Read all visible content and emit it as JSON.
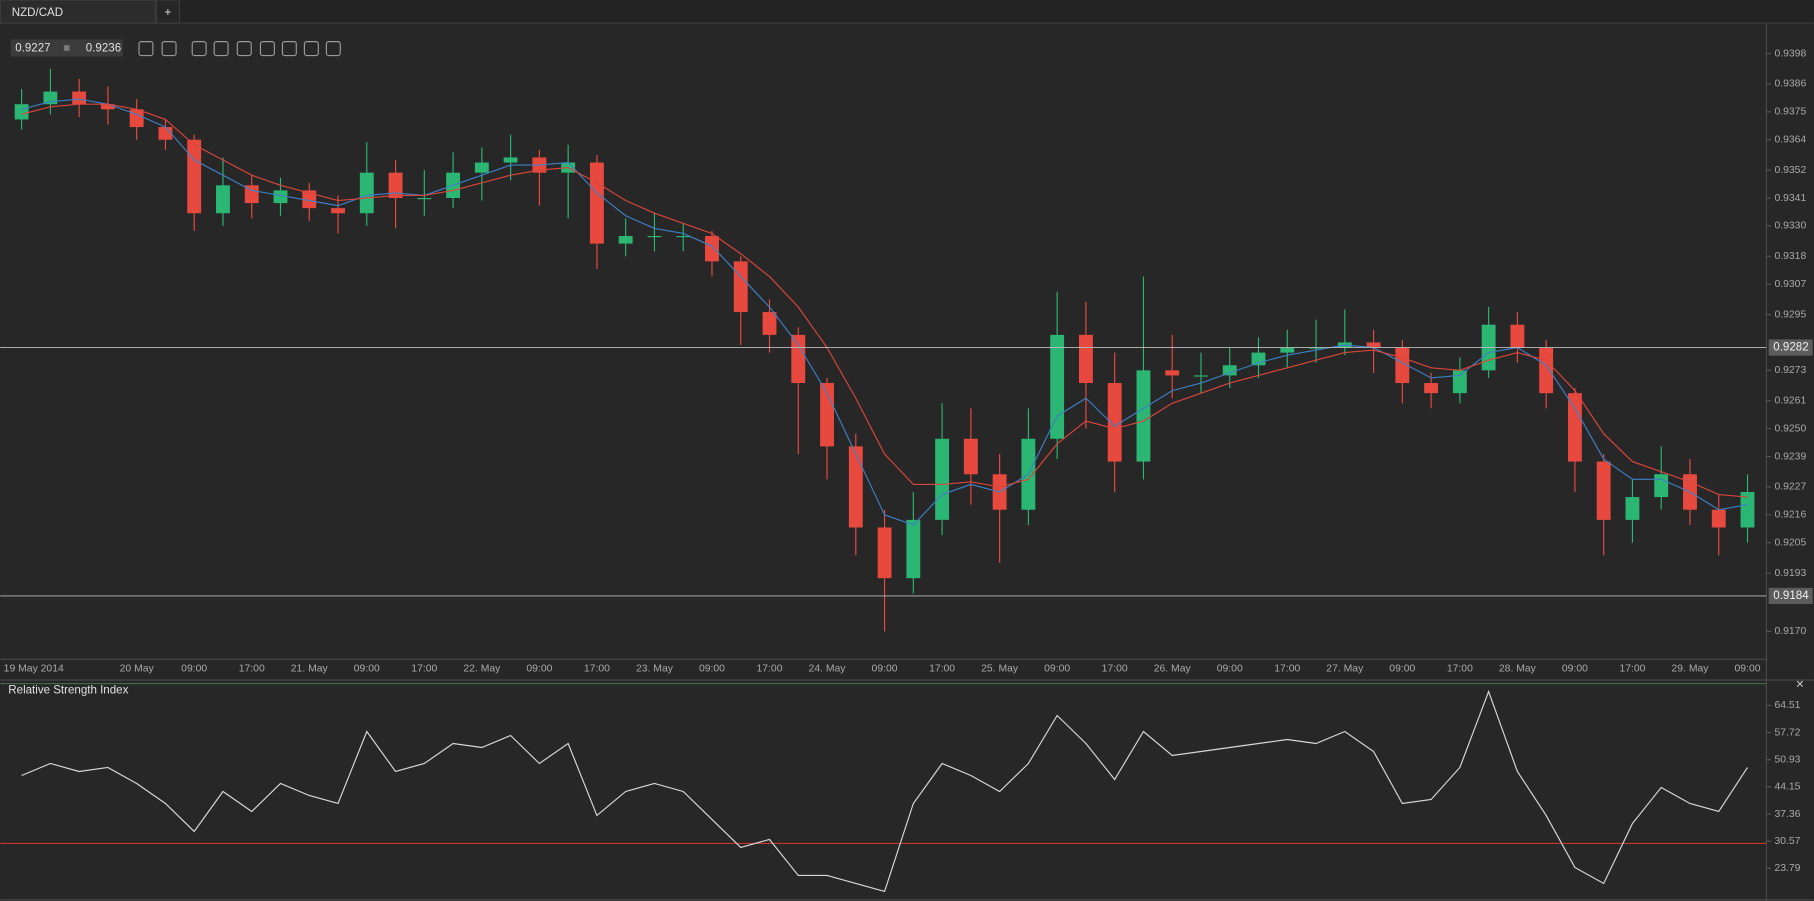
{
  "tab": {
    "symbol": "NZD/CAD",
    "add": "+"
  },
  "quote": {
    "bid": "0.9227",
    "ask": "0.9236"
  },
  "chart_data": [
    {
      "type": "candlestick",
      "categories": [
        "19 May 2014",
        null,
        null,
        null,
        "20 May",
        null,
        "09:00",
        null,
        "17:00",
        null,
        "21. May",
        null,
        "09:00",
        null,
        "17:00",
        null,
        "22. May",
        null,
        "09:00",
        null,
        "17:00",
        null,
        "23. May",
        null,
        "09:00",
        null,
        "17:00",
        null,
        "24. May",
        null,
        "09:00",
        null,
        "17:00",
        null,
        "25. May",
        null,
        "09:00",
        null,
        "17:00",
        null,
        "26. May",
        null,
        "09:00",
        null,
        "17:00",
        null,
        "27. May",
        null,
        "09:00",
        null,
        "17:00",
        null,
        "28. May",
        null,
        "09:00",
        null,
        "17:00",
        null,
        "29. May",
        null,
        "09:00"
      ],
      "open": [
        0.9372,
        0.9378,
        0.9383,
        0.9378,
        0.9376,
        0.9369,
        0.9364,
        0.9335,
        0.9346,
        0.9339,
        0.9344,
        0.9337,
        0.9335,
        0.9351,
        0.9341,
        0.9341,
        0.9351,
        0.9355,
        0.9357,
        0.9351,
        0.9355,
        0.9323,
        0.9326,
        0.9326,
        0.9326,
        0.9316,
        0.9296,
        0.9287,
        0.9268,
        0.9243,
        0.9211,
        0.9191,
        0.9214,
        0.9246,
        0.9232,
        0.9218,
        0.9246,
        0.9287,
        0.9268,
        0.9237,
        0.9273,
        0.9271,
        0.9271,
        0.9275,
        0.928,
        0.9282,
        0.9282,
        0.9284,
        0.9282,
        0.9268,
        0.9264,
        0.9273,
        0.9291,
        0.9282,
        0.9264,
        0.9237,
        0.9214,
        0.9223,
        0.9232,
        0.9218,
        0.9211
      ],
      "high": [
        0.9384,
        0.9392,
        0.9388,
        0.9385,
        0.938,
        0.9372,
        0.9366,
        0.9357,
        0.935,
        0.9349,
        0.9347,
        0.9342,
        0.9363,
        0.9356,
        0.9352,
        0.9359,
        0.9361,
        0.9366,
        0.936,
        0.9362,
        0.9358,
        0.9333,
        0.9335,
        0.9331,
        0.9328,
        0.9318,
        0.9301,
        0.929,
        0.927,
        0.9248,
        0.9218,
        0.9225,
        0.926,
        0.9258,
        0.924,
        0.9258,
        0.9304,
        0.93,
        0.928,
        0.931,
        0.9287,
        0.928,
        0.9282,
        0.9286,
        0.9289,
        0.9293,
        0.9297,
        0.9289,
        0.9285,
        0.9272,
        0.9278,
        0.9298,
        0.9296,
        0.9285,
        0.9266,
        0.924,
        0.923,
        0.9243,
        0.9238,
        0.9224,
        0.9232
      ],
      "low": [
        0.9368,
        0.9374,
        0.9373,
        0.937,
        0.9364,
        0.936,
        0.9328,
        0.933,
        0.9333,
        0.9334,
        0.9332,
        0.9327,
        0.933,
        0.9329,
        0.9334,
        0.9337,
        0.934,
        0.9348,
        0.9338,
        0.9333,
        0.9313,
        0.9318,
        0.932,
        0.932,
        0.931,
        0.9283,
        0.928,
        0.924,
        0.923,
        0.92,
        0.917,
        0.9185,
        0.9208,
        0.922,
        0.9197,
        0.9212,
        0.9238,
        0.925,
        0.9225,
        0.923,
        0.9262,
        0.9264,
        0.9266,
        0.927,
        0.9274,
        0.9276,
        0.9279,
        0.9272,
        0.926,
        0.9258,
        0.926,
        0.927,
        0.9276,
        0.9258,
        0.9225,
        0.92,
        0.9205,
        0.9218,
        0.9212,
        0.92,
        0.9205
      ],
      "close": [
        0.9378,
        0.9383,
        0.9378,
        0.9376,
        0.9369,
        0.9364,
        0.9335,
        0.9346,
        0.9339,
        0.9344,
        0.9337,
        0.9335,
        0.9351,
        0.9341,
        0.9341,
        0.9351,
        0.9355,
        0.9357,
        0.9351,
        0.9355,
        0.9323,
        0.9326,
        0.9326,
        0.9326,
        0.9316,
        0.9296,
        0.9287,
        0.9268,
        0.9243,
        0.9211,
        0.9191,
        0.9214,
        0.9246,
        0.9232,
        0.9218,
        0.9246,
        0.9287,
        0.9268,
        0.9237,
        0.9273,
        0.9271,
        0.9271,
        0.9275,
        0.928,
        0.9282,
        0.9282,
        0.9284,
        0.9282,
        0.9268,
        0.9264,
        0.9273,
        0.9291,
        0.9282,
        0.9264,
        0.9237,
        0.9214,
        0.9223,
        0.9232,
        0.9218,
        0.9211,
        0.9225
      ],
      "up_color": "#2bb673",
      "down_color": "#e8493f",
      "overlays": [
        {
          "color": "#3d7fc4",
          "values": [
            0.9376,
            0.9379,
            0.938,
            0.9378,
            0.9374,
            0.9369,
            0.9356,
            0.935,
            0.9344,
            0.9342,
            0.934,
            0.9338,
            0.9342,
            0.9343,
            0.9342,
            0.9346,
            0.935,
            0.9354,
            0.9354,
            0.9355,
            0.9343,
            0.9334,
            0.9329,
            0.9327,
            0.9322,
            0.931,
            0.9298,
            0.9283,
            0.9264,
            0.924,
            0.9216,
            0.9212,
            0.9224,
            0.9228,
            0.9225,
            0.9232,
            0.9255,
            0.9262,
            0.9251,
            0.9258,
            0.9265,
            0.9268,
            0.9272,
            0.9276,
            0.9279,
            0.9281,
            0.9283,
            0.9282,
            0.9276,
            0.927,
            0.9271,
            0.928,
            0.9282,
            0.9275,
            0.9258,
            0.9238,
            0.923,
            0.923,
            0.9225,
            0.9218,
            0.922
          ]
        },
        {
          "color": "#d8453c",
          "values": [
            0.9374,
            0.9377,
            0.9378,
            0.9378,
            0.9376,
            0.9372,
            0.9362,
            0.9356,
            0.935,
            0.9346,
            0.9343,
            0.934,
            0.9341,
            0.9342,
            0.9342,
            0.9344,
            0.9347,
            0.935,
            0.9352,
            0.9353,
            0.9347,
            0.934,
            0.9335,
            0.9331,
            0.9327,
            0.9319,
            0.931,
            0.9298,
            0.9282,
            0.9262,
            0.924,
            0.9228,
            0.9228,
            0.9229,
            0.9227,
            0.923,
            0.9244,
            0.9253,
            0.925,
            0.9253,
            0.926,
            0.9264,
            0.9268,
            0.9271,
            0.9274,
            0.9277,
            0.928,
            0.9281,
            0.9278,
            0.9274,
            0.9273,
            0.9277,
            0.928,
            0.9277,
            0.9265,
            0.9248,
            0.9237,
            0.9233,
            0.9229,
            0.9224,
            0.9223
          ]
        }
      ],
      "hlines": [
        0.9282,
        0.9184
      ],
      "ylim": [
        0.9159,
        0.941
      ],
      "yticks": [
        0.9398,
        0.9386,
        0.9375,
        0.9364,
        0.9352,
        0.9341,
        {
          "value": 0.933,
          "label": "0.9330"
        },
        0.9318,
        0.9307,
        0.9295,
        0.9273,
        0.9261,
        {
          "value": 0.925,
          "label": "0.9250"
        },
        0.9239,
        0.9227,
        0.9216,
        0.9205,
        0.9193,
        {
          "value": 0.917,
          "label": "0.9170"
        }
      ]
    },
    {
      "type": "line",
      "title": "Relative Strength Index",
      "close": "×",
      "color": "#d8d8d8",
      "values": [
        47,
        50,
        48,
        49,
        45,
        40,
        33,
        43,
        38,
        45,
        42,
        40,
        58,
        48,
        50,
        55,
        54,
        57,
        50,
        55,
        37,
        43,
        45,
        43,
        36,
        29,
        31,
        22,
        22,
        20,
        18,
        40,
        50,
        47,
        43,
        50,
        62,
        55,
        46,
        58,
        52,
        53,
        54,
        55,
        56,
        55,
        58,
        53,
        40,
        41,
        49,
        68,
        48,
        37,
        24,
        20,
        35,
        44,
        40,
        38,
        49
      ],
      "level": 30,
      "level_color": "#c0392b",
      "ylim": [
        15.9,
        69.7
      ],
      "yticks": [
        64.51,
        57.72,
        50.93,
        44.15,
        37.36,
        30.57,
        23.79
      ]
    }
  ]
}
